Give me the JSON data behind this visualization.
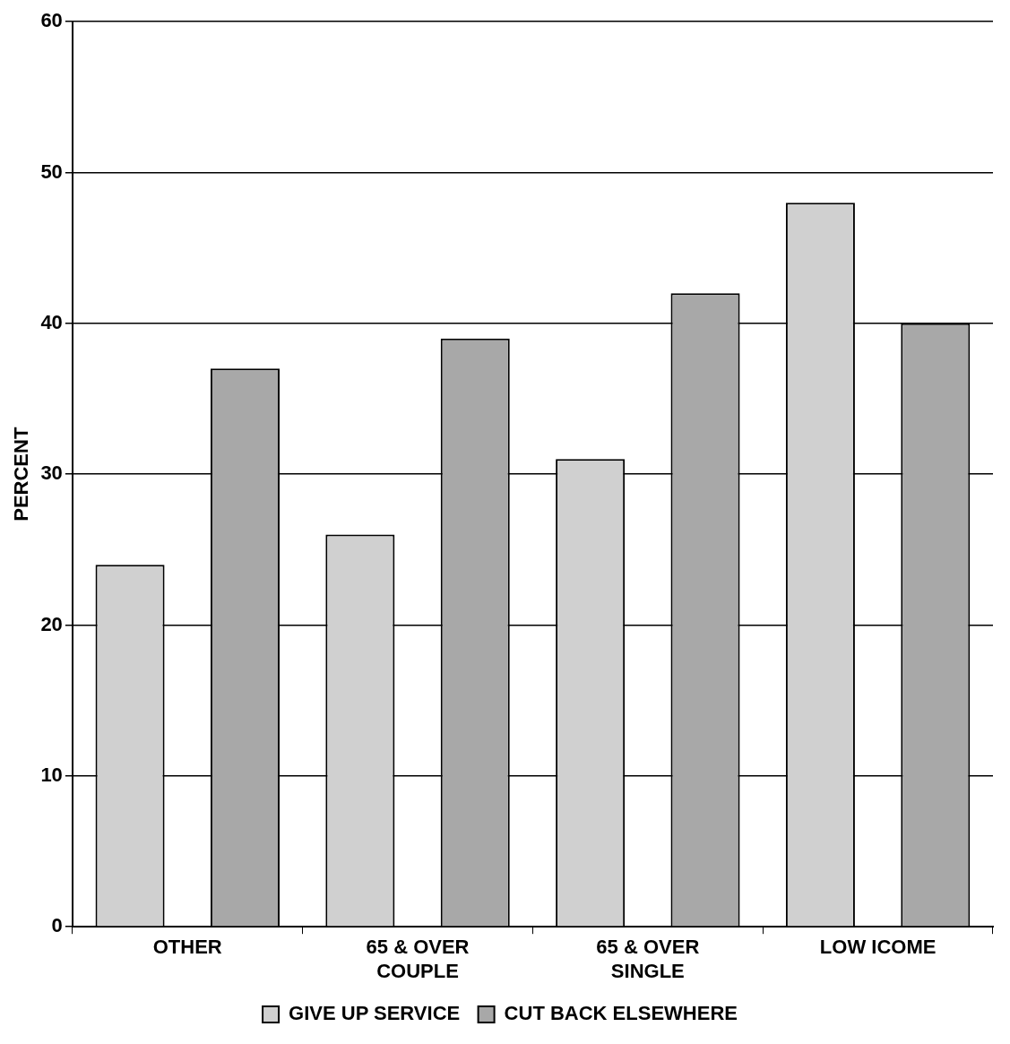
{
  "chart_data": {
    "type": "bar",
    "ylabel": "PERCENT",
    "categories": [
      "OTHER",
      "65 & OVER\nCOUPLE",
      "65 & OVER\nSINGLE",
      "LOW ICOME"
    ],
    "series": [
      {
        "name": "GIVE UP SERVICE",
        "color": "#d0d0d0",
        "values": [
          24,
          26,
          31,
          48
        ]
      },
      {
        "name": "CUT BACK ELSEWHERE",
        "color": "#a8a8a8",
        "values": [
          37,
          39,
          42,
          40
        ]
      }
    ],
    "ylim": [
      0,
      60
    ],
    "yticks": [
      0,
      10,
      20,
      30,
      40,
      50,
      60
    ],
    "grid": "y",
    "legend": "bottom"
  }
}
